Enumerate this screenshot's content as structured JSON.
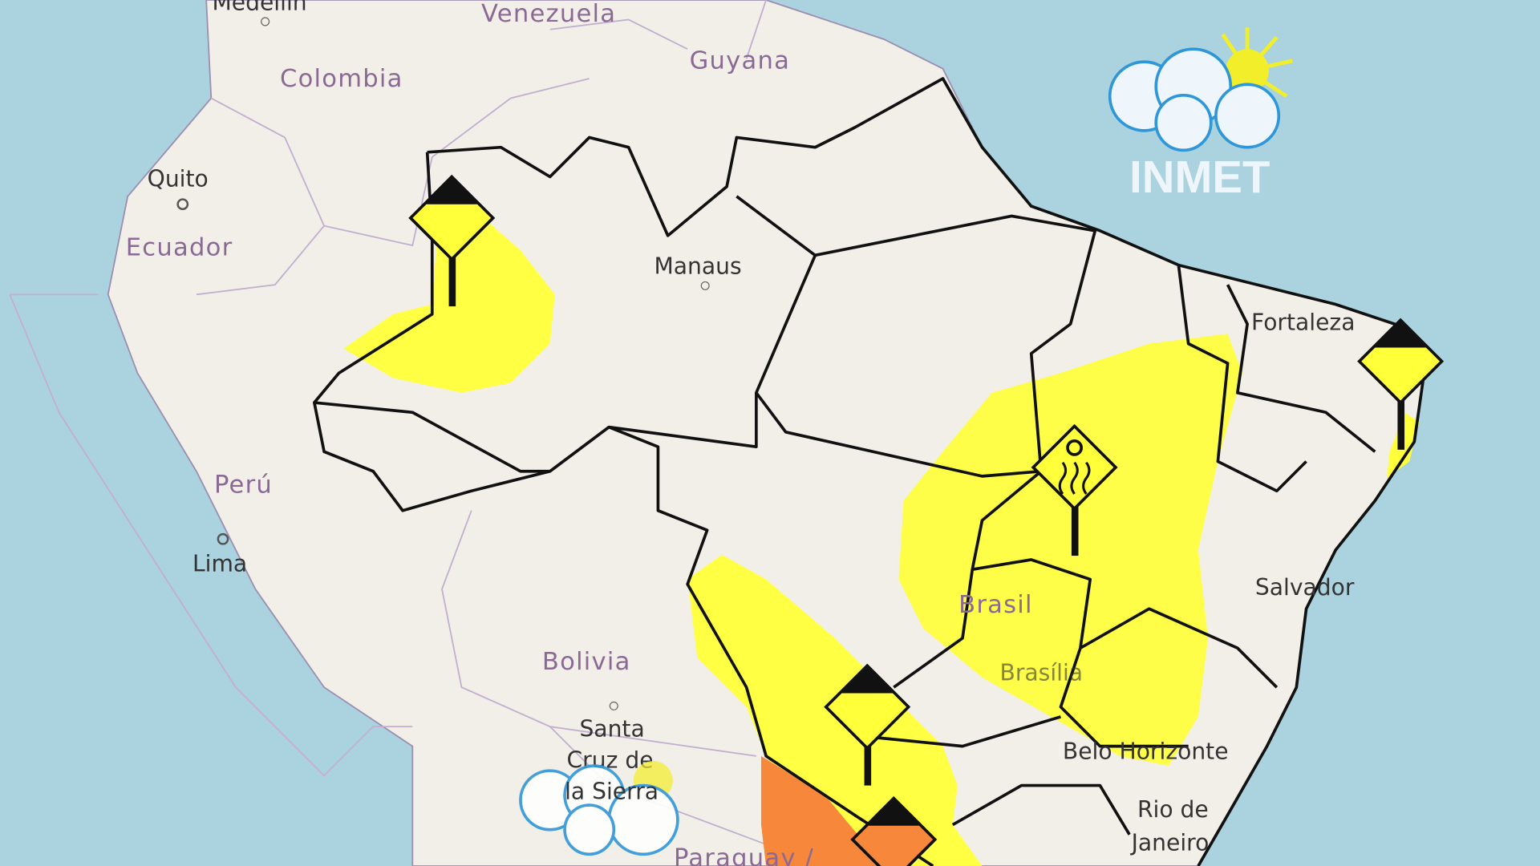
{
  "map": {
    "labels": {
      "countries": [
        "Venezuela",
        "Guyana",
        "Colombia",
        "Ecuador",
        "Perú",
        "Bolivia",
        "Brasil",
        "Paraguay /"
      ],
      "cities": [
        "Medellín",
        "Quito",
        "Lima",
        "Manaus",
        "Fortaleza",
        "Salvador",
        "Brasília",
        "Belo Horizonte",
        "Rio de",
        "Janeiro",
        "Santa",
        "Cruz de",
        "la Sierra"
      ]
    },
    "logo": {
      "text": "INMET"
    },
    "colors": {
      "ocean": "#aad3df",
      "land": "#f2efe9",
      "alert_yellow": "#ffff3a",
      "alert_orange": "#f7873a",
      "border": "#111111"
    },
    "alerts": [
      {
        "level": "yellow",
        "icon": "rain-warning-icon"
      },
      {
        "level": "yellow",
        "icon": "low-humidity-warning-icon"
      },
      {
        "level": "yellow",
        "icon": "rain-warning-icon"
      },
      {
        "level": "yellow",
        "icon": "rain-warning-icon"
      },
      {
        "level": "orange",
        "icon": "rain-warning-icon"
      }
    ]
  }
}
